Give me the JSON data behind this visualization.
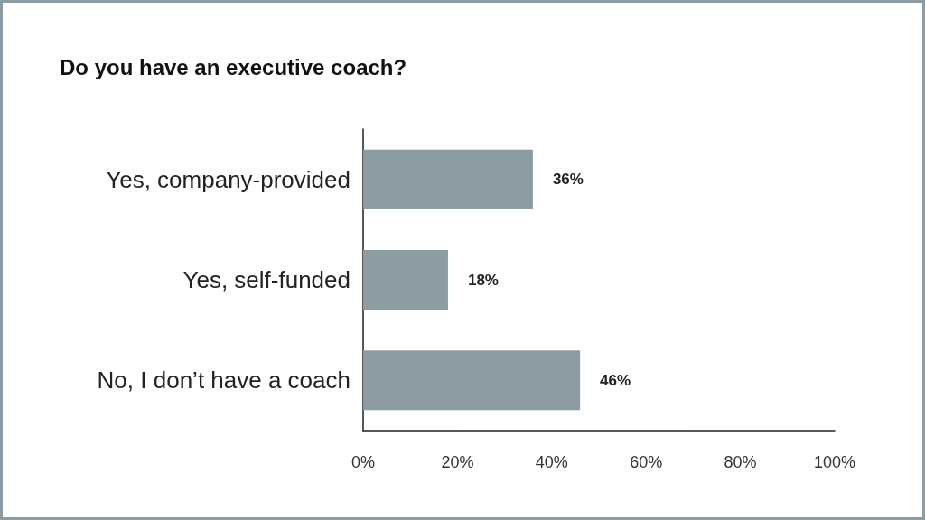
{
  "chart_data": {
    "type": "bar",
    "orientation": "horizontal",
    "title": "Do you have an executive coach?",
    "categories": [
      "Yes, company-provided",
      "Yes, self-funded",
      "No, I don’t have a coach"
    ],
    "values": [
      36,
      18,
      46
    ],
    "color": "#8d9ca3",
    "value_labels": [
      "36%",
      "18%",
      "46%"
    ],
    "xlim": [
      0,
      100
    ],
    "xticks": [
      {
        "value": 0,
        "label": "0%"
      },
      {
        "value": 20,
        "label": "20%"
      },
      {
        "value": 40,
        "label": "40%"
      },
      {
        "value": 60,
        "label": "60%"
      },
      {
        "value": 80,
        "label": "80%"
      },
      {
        "value": 100,
        "label": "100%"
      }
    ],
    "grid": false
  }
}
